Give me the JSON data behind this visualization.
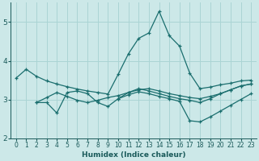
{
  "title": "",
  "xlabel": "Humidex (Indice chaleur)",
  "ylabel": "",
  "background_color": "#cce8e8",
  "grid_color": "#aad4d4",
  "line_color": "#1a6e6e",
  "xlim": [
    -0.5,
    23.5
  ],
  "ylim": [
    2.0,
    5.5
  ],
  "yticks": [
    2,
    3,
    4,
    5
  ],
  "xticks": [
    0,
    1,
    2,
    3,
    4,
    5,
    6,
    7,
    8,
    9,
    10,
    11,
    12,
    13,
    14,
    15,
    16,
    17,
    18,
    19,
    20,
    21,
    22,
    23
  ],
  "lines": [
    {
      "x": [
        0,
        1,
        2,
        3,
        4,
        5,
        6,
        7,
        8,
        9,
        10,
        11,
        12,
        13,
        14,
        15,
        16,
        17,
        18,
        19,
        20,
        21,
        22,
        23
      ],
      "y": [
        3.55,
        3.78,
        3.6,
        3.48,
        3.4,
        3.33,
        3.27,
        3.22,
        3.18,
        3.14,
        3.65,
        4.18,
        4.58,
        4.72,
        5.28,
        4.65,
        4.38,
        3.68,
        3.28,
        3.32,
        3.38,
        3.42,
        3.48,
        3.5
      ]
    },
    {
      "x": [
        2,
        3,
        4,
        5,
        6,
        7,
        8,
        9,
        10,
        11,
        12,
        13,
        14,
        15,
        16,
        17,
        18,
        19,
        20,
        21,
        22,
        23
      ],
      "y": [
        2.92,
        3.05,
        3.18,
        3.08,
        2.98,
        2.92,
        2.98,
        3.05,
        3.1,
        3.18,
        3.25,
        3.28,
        3.22,
        3.15,
        3.1,
        3.05,
        3.02,
        3.08,
        3.15,
        3.25,
        3.35,
        3.4
      ]
    },
    {
      "x": [
        2,
        3,
        4,
        5,
        6,
        7,
        8,
        9,
        10,
        11,
        12,
        13,
        14,
        15,
        16,
        17,
        18,
        19,
        20,
        21,
        22,
        23
      ],
      "y": [
        2.92,
        2.92,
        2.65,
        3.18,
        3.22,
        3.15,
        2.92,
        2.82,
        3.02,
        3.18,
        3.28,
        3.22,
        3.15,
        3.08,
        3.02,
        2.98,
        2.92,
        3.02,
        3.15,
        3.25,
        3.35,
        3.4
      ]
    },
    {
      "x": [
        10,
        11,
        12,
        13,
        14,
        15,
        16,
        17,
        18,
        19,
        20,
        21,
        22,
        23
      ],
      "y": [
        3.02,
        3.12,
        3.2,
        3.15,
        3.08,
        3.02,
        2.95,
        2.45,
        2.42,
        2.55,
        2.7,
        2.85,
        3.0,
        3.15
      ]
    }
  ]
}
